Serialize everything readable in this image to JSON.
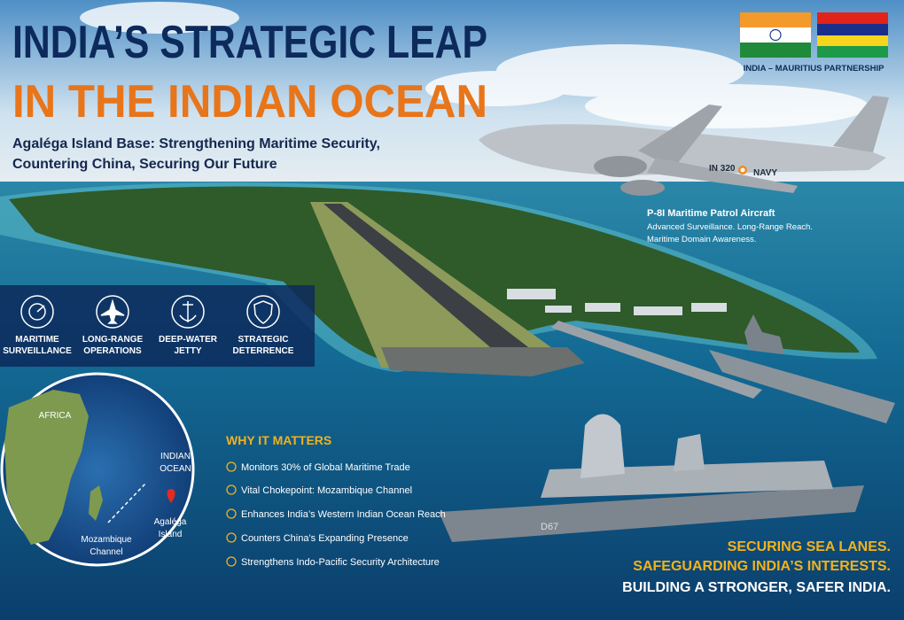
{
  "header": {
    "title_lines": [
      "INDIA’S STRATEGIC LEAP",
      "IN THE INDIAN OCEAN"
    ],
    "subtitle_lines": [
      "Agaléga Island Base: Strengthening Maritime Security,",
      "Countering China, Securing Our Future"
    ]
  },
  "partnership": {
    "caption": "INDIA – MAURITIUS PARTNERSHIP"
  },
  "aircraft": {
    "markings": [
      "IN 320",
      "NAVY"
    ],
    "title": "P-8I Maritime Patrol Aircraft",
    "lines": [
      "Advanced Surveillance. Long-Range Reach.",
      "Maritime Domain Awareness."
    ]
  },
  "features": [
    {
      "label_lines": [
        "MARITIME",
        "SURVEILLANCE"
      ]
    },
    {
      "label_lines": [
        "LONG-RANGE",
        "OPERATIONS"
      ]
    },
    {
      "label_lines": [
        "DEEP-WATER",
        "JETTY"
      ]
    },
    {
      "label_lines": [
        "STRATEGIC",
        "DETERRENCE"
      ]
    }
  ],
  "map": {
    "africa": "AFRICA",
    "ocean_lines": [
      "INDIAN",
      "OCEAN"
    ],
    "island_lines": [
      "Agaléga",
      "Island"
    ],
    "channel_lines": [
      "Mozambique",
      "Channel"
    ]
  },
  "ship": {
    "hull_number": "D67"
  },
  "why": {
    "heading": "WHY IT MATTERS",
    "items": [
      "Monitors 30% of Global Maritime Trade",
      "Vital Chokepoint: Mozambique Channel",
      "Enhances India’s Western Indian Ocean Reach",
      "Counters China’s Expanding Presence",
      "Strengthens Indo-Pacific Security Architecture"
    ]
  },
  "footer": {
    "lines": [
      "SECURING SEA LANES.",
      "SAFEGUARDING INDIA’S INTERESTS.",
      "BUILDING A STRONGER, SAFER INDIA."
    ]
  }
}
